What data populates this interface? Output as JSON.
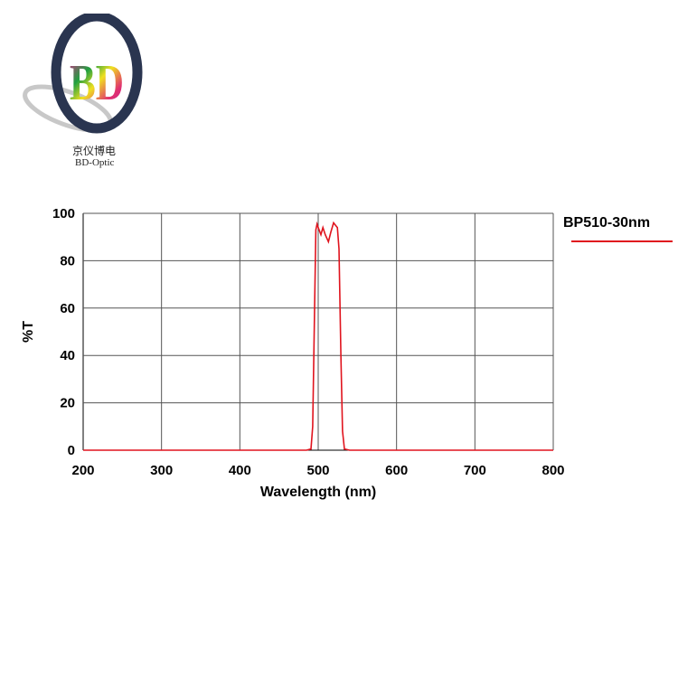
{
  "logo": {
    "mark": "BD",
    "name_cn": "京仪博电",
    "name_en": "BD-Optic"
  },
  "chart_data": {
    "type": "line",
    "title": "",
    "xlabel": "Wavelength (nm)",
    "ylabel": "%T",
    "xlim": [
      200,
      800
    ],
    "ylim": [
      0,
      100
    ],
    "xticks": [
      200,
      300,
      400,
      500,
      600,
      700,
      800
    ],
    "yticks": [
      0,
      20,
      40,
      60,
      80,
      100
    ],
    "grid": true,
    "legend": "top-right",
    "series": [
      {
        "name": "BP510-30nm",
        "color": "#e0141e",
        "x": [
          200,
          485,
          490.8,
          493,
          495.4,
          497,
          498.5,
          500,
          503.5,
          506,
          509,
          513,
          516,
          519.6,
          522,
          524.5,
          526.5,
          529,
          531,
          533.5,
          540,
          800
        ],
        "y": [
          0,
          0,
          0.5,
          10,
          60,
          93,
          95.5,
          94,
          91,
          94,
          91,
          88,
          92,
          96,
          95,
          94,
          85,
          40,
          8,
          0.5,
          0,
          0
        ]
      }
    ]
  }
}
